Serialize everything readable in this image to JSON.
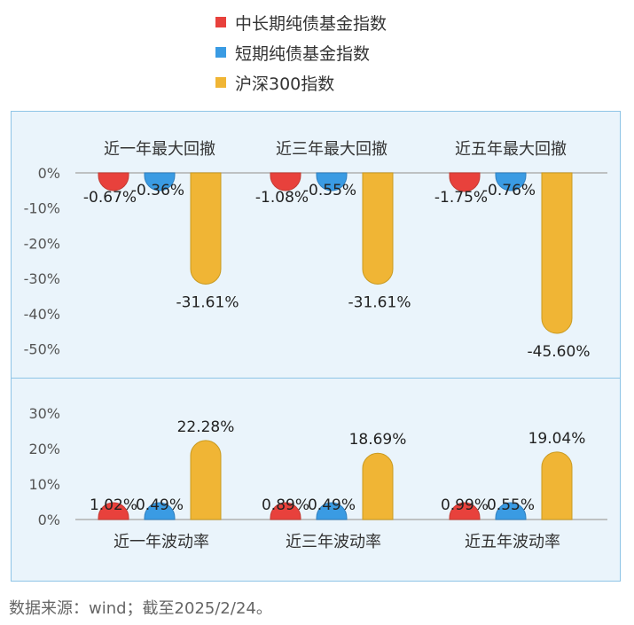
{
  "legend": {
    "items": [
      {
        "label": "中长期纯债基金指数",
        "color": "#e8413c"
      },
      {
        "label": "短期纯债基金指数",
        "color": "#3a9be3"
      },
      {
        "label": "沪深300指数",
        "color": "#f0b535"
      }
    ]
  },
  "footer": {
    "source": "数据来源：wind；截至2025/2/24。"
  },
  "chart_data": [
    {
      "type": "bar",
      "categories": [
        "近一年最大回撤",
        "近三年最大回撤",
        "近五年最大回撤"
      ],
      "series": [
        {
          "name": "中长期纯债基金指数",
          "values": [
            -0.67,
            -1.08,
            -1.75
          ],
          "labels": [
            "-0.67%",
            "-1.08%",
            "-1.75%"
          ]
        },
        {
          "name": "短期纯债基金指数",
          "values": [
            -0.36,
            -0.55,
            -0.76
          ],
          "labels": [
            "-0.36%",
            "-0.55%",
            "-0.76%"
          ]
        },
        {
          "name": "沪深300指数",
          "values": [
            -31.61,
            -31.61,
            -45.6
          ],
          "labels": [
            "-31.61%",
            "-31.61%",
            "-45.60%"
          ]
        }
      ],
      "yticks": [
        "0%",
        "-10%",
        "-20%",
        "-30%",
        "-40%",
        "-50%"
      ],
      "ylim": [
        -50,
        0
      ],
      "category_position": "top",
      "grid": false
    },
    {
      "type": "bar",
      "categories": [
        "近一年波动率",
        "近三年波动率",
        "近五年波动率"
      ],
      "series": [
        {
          "name": "中长期纯债基金指数",
          "values": [
            1.02,
            0.89,
            0.99
          ],
          "labels": [
            "1.02%",
            "0.89%",
            "0.99%"
          ]
        },
        {
          "name": "短期纯债基金指数",
          "values": [
            0.49,
            0.49,
            0.55
          ],
          "labels": [
            "0.49%",
            "0.49%",
            "0.55%"
          ]
        },
        {
          "name": "沪深300指数",
          "values": [
            22.28,
            18.69,
            19.04
          ],
          "labels": [
            "22.28%",
            "18.69%",
            "19.04%"
          ]
        }
      ],
      "yticks": [
        "30%",
        "20%",
        "10%",
        "0%"
      ],
      "ylim": [
        0,
        30
      ],
      "category_position": "bottom",
      "grid": false
    }
  ]
}
